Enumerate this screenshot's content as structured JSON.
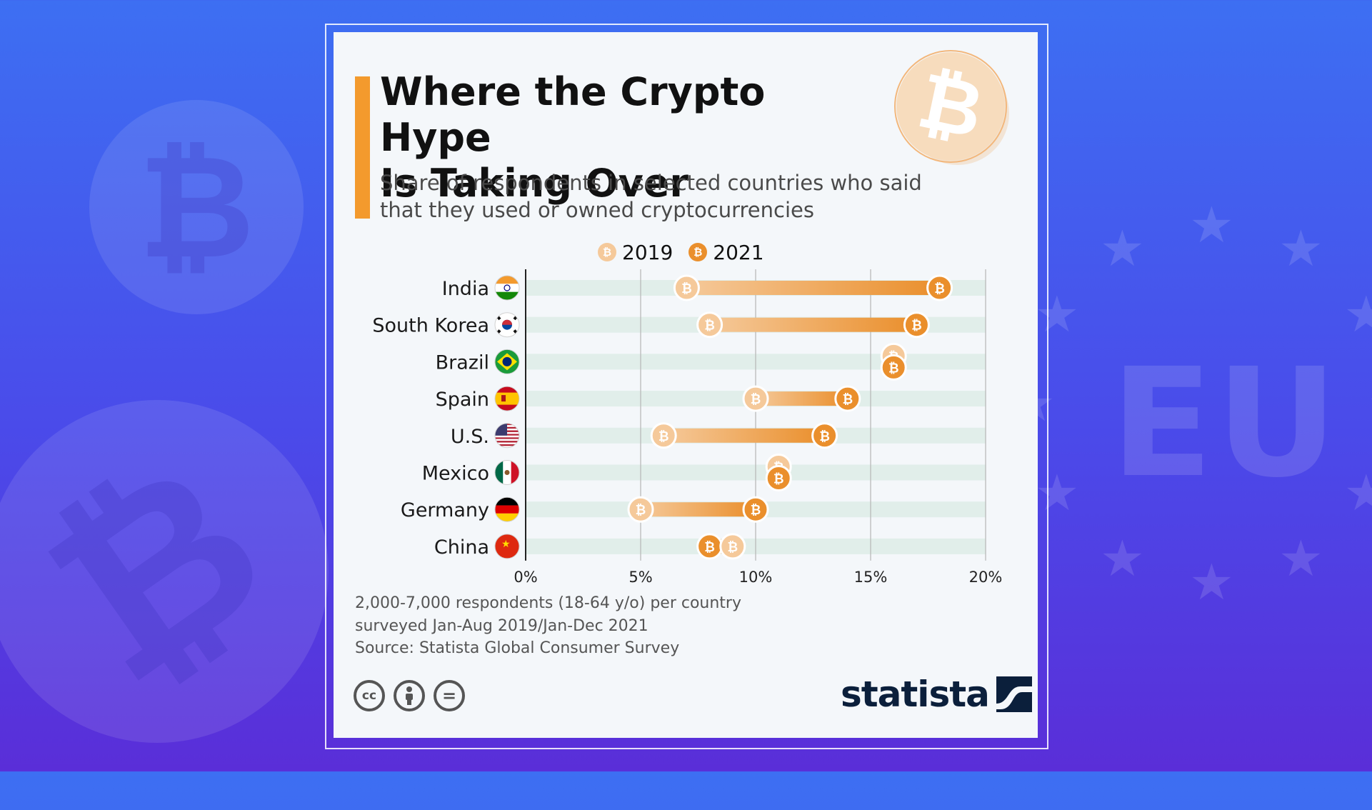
{
  "background": {
    "eu_text": "EU",
    "coin_glyph": "₿"
  },
  "infographic": {
    "title_line1": "Where the Crypto Hype",
    "title_line2": "Is Taking Over",
    "subtitle_line1": "Share of respondents in selected countries who said",
    "subtitle_line2": "that they used or owned cryptocurrencies",
    "hero_icon": "bitcoin-coin-icon",
    "coin_glyph": "₿",
    "footnote_line1": "2,000-7,000 respondents (18-64 y/o) per country",
    "footnote_line2": "surveyed Jan-Aug 2019/Jan-Dec 2021",
    "source": "Source: Statista Global Consumer Survey",
    "license_icons": [
      "cc-icon",
      "attribution-icon",
      "no-derivatives-icon"
    ],
    "license_labels": [
      "cc",
      "",
      "="
    ],
    "brand": "statista",
    "colors": {
      "accent": "#f39a2d",
      "color_2019": "#f5c99a",
      "color_2021": "#ea8f2c",
      "row_band": "#e1eeea",
      "grid": "#b5b5b5"
    }
  },
  "chart_data": {
    "type": "dumbbell",
    "title": "Where the Crypto Hype Is Taking Over",
    "subtitle": "Share of respondents in selected countries who said that they used or owned cryptocurrencies",
    "legend": [
      "2019",
      "2021"
    ],
    "legend_position": "top-center",
    "categories": [
      "India",
      "South Korea",
      "Brazil",
      "Spain",
      "U.S.",
      "Mexico",
      "Germany",
      "China"
    ],
    "flags": [
      "india-flag-icon",
      "south-korea-flag-icon",
      "brazil-flag-icon",
      "spain-flag-icon",
      "us-flag-icon",
      "mexico-flag-icon",
      "germany-flag-icon",
      "china-flag-icon"
    ],
    "series": [
      {
        "name": "2019",
        "values": [
          7,
          8,
          16,
          10,
          6,
          11,
          5,
          9
        ]
      },
      {
        "name": "2021",
        "values": [
          18,
          17,
          16,
          14,
          13,
          11,
          10,
          8
        ]
      }
    ],
    "xlim": [
      0,
      20
    ],
    "xticks": [
      0,
      5,
      10,
      15,
      20
    ],
    "xtick_labels": [
      "0%",
      "5%",
      "10%",
      "15%",
      "20%"
    ],
    "unit": "%",
    "grid": true
  }
}
